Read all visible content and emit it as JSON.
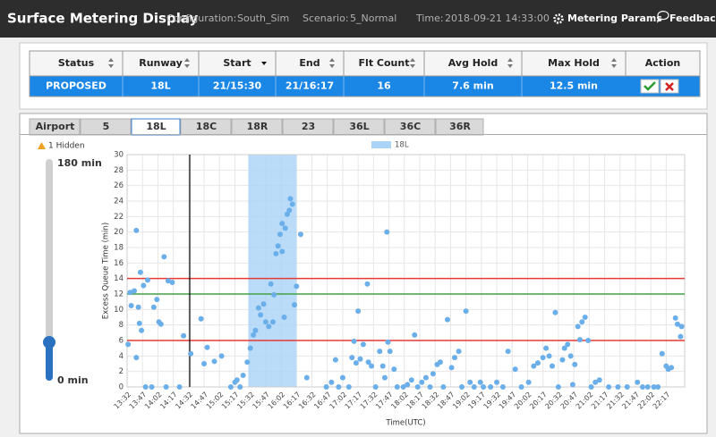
{
  "header": {
    "title": "Surface Metering Display",
    "configuration": {
      "label": "Configuration:",
      "value": "South_Sim"
    },
    "scenario": {
      "label": "Scenario:",
      "value": "5_Normal"
    },
    "time": {
      "label": "Time:",
      "value": "2018-09-21 14:33:00"
    },
    "metering_params": "Metering Params",
    "feedback": "Feedback"
  },
  "table": {
    "columns": [
      "Status",
      "Runway",
      "Start",
      "End",
      "Flt Count",
      "Avg Hold",
      "Max Hold",
      "Action"
    ],
    "rows": [
      [
        "PROPOSED",
        "18L",
        "21/15:30",
        "21/16:17",
        16,
        "7.6 min",
        "12.5 min"
      ]
    ]
  },
  "tabs": [
    "Airport",
    "5",
    "18L",
    "18C",
    "18R",
    "23",
    "36L",
    "36C",
    "36R"
  ],
  "selected_tab_index": 2,
  "slider": {
    "hidden": "1 Hidden",
    "max_label": "180 min",
    "min_label": "0 min"
  },
  "chart_data": {
    "type": "scatter",
    "x_label": "Time(UTC)",
    "y_label": "Excess Queue Time (min)",
    "xlim": [
      812,
      1355
    ],
    "ylim": [
      0,
      30
    ],
    "xticks": [
      {
        "value": 812,
        "label": "13:32"
      },
      {
        "value": 827,
        "label": "13:47"
      },
      {
        "value": 842,
        "label": "14:02"
      },
      {
        "value": 857,
        "label": "14:17"
      },
      {
        "value": 872,
        "label": "14:32"
      },
      {
        "value": 887,
        "label": "14:47"
      },
      {
        "value": 902,
        "label": "15:02"
      },
      {
        "value": 917,
        "label": "15:17"
      },
      {
        "value": 932,
        "label": "15:32"
      },
      {
        "value": 947,
        "label": "15:47"
      },
      {
        "value": 962,
        "label": "16:02"
      },
      {
        "value": 977,
        "label": "16:17"
      },
      {
        "value": 992,
        "label": "16:32"
      },
      {
        "value": 1007,
        "label": "16:47"
      },
      {
        "value": 1022,
        "label": "17:02"
      },
      {
        "value": 1037,
        "label": "17:17"
      },
      {
        "value": 1052,
        "label": "17:32"
      },
      {
        "value": 1067,
        "label": "17:47"
      },
      {
        "value": 1082,
        "label": "18:02"
      },
      {
        "value": 1097,
        "label": "18:17"
      },
      {
        "value": 1112,
        "label": "18:32"
      },
      {
        "value": 1127,
        "label": "18:47"
      },
      {
        "value": 1142,
        "label": "19:02"
      },
      {
        "value": 1157,
        "label": "19:17"
      },
      {
        "value": 1172,
        "label": "19:32"
      },
      {
        "value": 1187,
        "label": "19:47"
      },
      {
        "value": 1202,
        "label": "20:02"
      },
      {
        "value": 1217,
        "label": "20:17"
      },
      {
        "value": 1232,
        "label": "20:32"
      },
      {
        "value": 1247,
        "label": "20:47"
      },
      {
        "value": 1262,
        "label": "21:02"
      },
      {
        "value": 1277,
        "label": "21:17"
      },
      {
        "value": 1292,
        "label": "21:32"
      },
      {
        "value": 1307,
        "label": "21:47"
      },
      {
        "value": 1322,
        "label": "22:02"
      },
      {
        "value": 1337,
        "label": "22:17"
      }
    ],
    "yticks": [
      0,
      2,
      4,
      6,
      8,
      10,
      12,
      14,
      16,
      18,
      20,
      22,
      24,
      26,
      28,
      30
    ],
    "grid": true,
    "band": {
      "x": [
        930,
        977
      ],
      "color": "#a9d3f7"
    },
    "hlines": [
      {
        "value": 14,
        "color": "#e53935"
      },
      {
        "value": 12,
        "color": "#43a047"
      },
      {
        "value": 6,
        "color": "#e53935"
      }
    ],
    "vline": {
      "value": 873,
      "color": "#000000"
    },
    "series": [
      {
        "name": "18L",
        "color": "#6aaeea",
        "x": [
          813,
          815,
          816,
          819,
          821,
          821,
          823,
          824,
          825,
          826,
          828,
          830,
          832,
          836,
          838,
          841,
          843,
          845,
          848,
          852,
          856,
          850,
          863,
          867,
          874,
          884,
          887,
          890,
          897,
          904,
          913,
          917,
          919,
          922,
          925,
          929,
          932,
          935,
          937,
          940,
          942,
          945,
          947,
          950,
          952,
          954,
          955,
          957,
          959,
          961,
          963,
          963,
          966,
          968,
          970,
          971,
          973,
          975,
          977,
          965,
          981,
          987,
          1006,
          1011,
          1015,
          1018,
          1022,
          1028,
          1031,
          1033,
          1035,
          1037,
          1039,
          1042,
          1046,
          1047,
          1050,
          1054,
          1058,
          1061,
          1063,
          1065,
          1066,
          1068,
          1072,
          1075,
          1081,
          1085,
          1089,
          1092,
          1095,
          1099,
          1103,
          1107,
          1110,
          1114,
          1117,
          1120,
          1124,
          1128,
          1131,
          1135,
          1138,
          1142,
          1146,
          1150,
          1156,
          1159,
          1166,
          1172,
          1178,
          1183,
          1190,
          1196,
          1203,
          1208,
          1212,
          1217,
          1220,
          1223,
          1226,
          1229,
          1232,
          1236,
          1238,
          1241,
          1244,
          1246,
          1248,
          1251,
          1253,
          1255,
          1258,
          1261,
          1264,
          1268,
          1272,
          1281,
          1290,
          1299,
          1309,
          1314,
          1319,
          1325,
          1329,
          1333,
          1337,
          1339,
          1342,
          1346,
          1348,
          1351,
          1352
        ],
        "values": [
          5.5,
          12.2,
          10.5,
          12.4,
          20.2,
          3.8,
          10.3,
          8.2,
          14.8,
          7.3,
          13.1,
          0,
          13.8,
          0,
          10.3,
          11.3,
          8.4,
          8.1,
          16.8,
          13.7,
          13.5,
          0,
          0,
          6.6,
          4.3,
          8.8,
          3,
          5.1,
          3.3,
          4,
          0,
          0.6,
          0.9,
          0,
          1.5,
          3.2,
          5,
          6.7,
          7.3,
          10.2,
          9.3,
          10.7,
          8.4,
          7.8,
          13.3,
          8.4,
          11.9,
          17.2,
          18.2,
          19.7,
          21.1,
          17.5,
          20.5,
          22.3,
          22.8,
          24.3,
          23.6,
          10.6,
          13,
          9,
          19.7,
          1.2,
          0,
          0.6,
          3.5,
          0,
          1.2,
          0,
          3.8,
          5.9,
          3.1,
          9.8,
          3.6,
          5.5,
          13.3,
          3.2,
          2.7,
          0,
          4.6,
          2.7,
          1.2,
          20,
          5.8,
          4.6,
          2.3,
          0,
          0,
          0.3,
          0.9,
          6.7,
          0,
          0.6,
          1.2,
          0,
          1.7,
          2.9,
          3.2,
          0,
          8.7,
          2.5,
          3.8,
          4.6,
          0,
          9.8,
          0.6,
          0,
          0.6,
          0,
          0,
          0.6,
          0,
          4.6,
          2.3,
          0,
          0.6,
          2.7,
          3.1,
          3.8,
          5,
          4,
          2.7,
          9.6,
          0,
          3.5,
          5,
          5.5,
          4,
          0.3,
          2.9,
          7.8,
          6.1,
          8.4,
          9,
          6,
          0,
          0.6,
          0.9,
          0,
          0,
          0,
          0.6,
          0,
          0,
          0,
          0,
          4.3,
          2.7,
          2.3,
          2.5,
          8.9,
          8.1,
          6.5,
          7.8
        ]
      }
    ]
  }
}
